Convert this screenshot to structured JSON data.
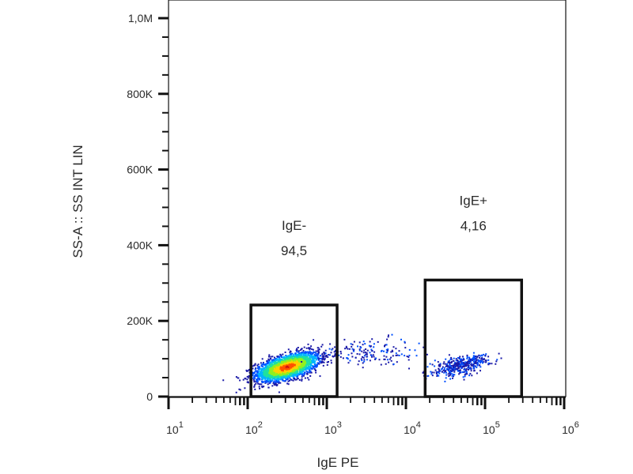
{
  "chart_data": {
    "type": "scatter",
    "title": "",
    "xlabel": "IgE PE",
    "ylabel": "SS-A :: SS INT LIN",
    "x_scale": "log",
    "xlim_log10": [
      1,
      6
    ],
    "ylim": [
      0,
      1050000
    ],
    "x_ticks": [
      {
        "exp": 1,
        "base": "10",
        "sup": "1"
      },
      {
        "exp": 2,
        "base": "10",
        "sup": "2"
      },
      {
        "exp": 3,
        "base": "10",
        "sup": "3"
      },
      {
        "exp": 4,
        "base": "10",
        "sup": "4"
      },
      {
        "exp": 5,
        "base": "10",
        "sup": "5"
      },
      {
        "exp": 6,
        "base": "10",
        "sup": "6"
      }
    ],
    "y_ticks": [
      {
        "value": 0,
        "label": "0"
      },
      {
        "value": 200000,
        "label": "200K"
      },
      {
        "value": 400000,
        "label": "400K"
      },
      {
        "value": 600000,
        "label": "600K"
      },
      {
        "value": 800000,
        "label": "800K"
      },
      {
        "value": 1000000,
        "label": "1,0M"
      }
    ],
    "gates": [
      {
        "name": "IgE-",
        "percent": "94,5",
        "x_range": [
          110,
          1350
        ],
        "y_range": [
          0,
          242000
        ]
      },
      {
        "name": "IgE+",
        "percent": "4,16",
        "x_range": [
          17500,
          290000
        ],
        "y_range": [
          0,
          308000
        ]
      }
    ],
    "populations": [
      {
        "name": "IgE- cluster",
        "count": 2600,
        "center_log10_x": 2.5,
        "center_y": 78000,
        "sd_log10_x": 0.2,
        "sd_y": 19000,
        "correlation": 0.55,
        "colored_by_density": true
      },
      {
        "name": "intermediate",
        "count": 160,
        "center_log10_x": 3.55,
        "center_y": 115000,
        "sd_log10_x": 0.28,
        "sd_y": 20000,
        "correlation": 0.1,
        "colored_by_density": false
      },
      {
        "name": "IgE+ cluster",
        "count": 420,
        "center_log10_x": 4.7,
        "center_y": 82000,
        "sd_log10_x": 0.17,
        "sd_y": 13000,
        "correlation": 0.5,
        "colored_by_density": false
      }
    ],
    "density_colors": [
      "#1a1aa8",
      "#0050ff",
      "#00b4ff",
      "#20e0a0",
      "#90f020",
      "#ffd000",
      "#ff5000",
      "#d01010"
    ],
    "grid": false,
    "legend": "none"
  }
}
